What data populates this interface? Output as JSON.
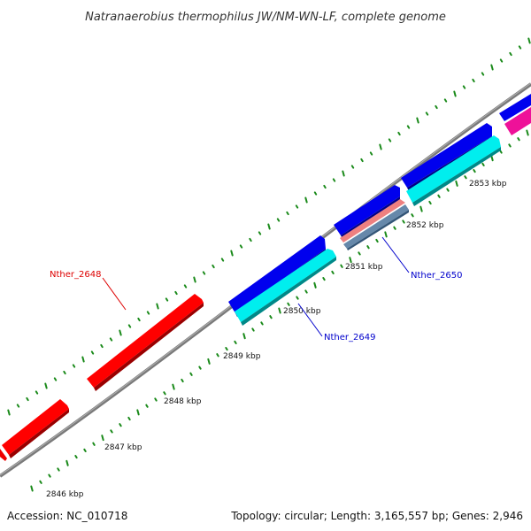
{
  "title": "Natranaerobius thermophilus JW/NM-WN-LF, complete genome",
  "footer": {
    "accession": "Accession: NC_010718",
    "summary": "Topology: circular; Length: 3,165,557 bp; Genes: 2,946"
  },
  "colors": {
    "backbone": "#808080",
    "tick": "#1a8a1a",
    "gene_red": "#ff0000",
    "gene_blue": "#0000ee",
    "gene_cyan": "#00eeee",
    "gene_pink": "#ee1199",
    "gene_salmon": "#e88080",
    "gene_steel": "#6688aa",
    "label_red": "#dd0000",
    "label_blue": "#0000cc"
  },
  "scale_labels": [
    {
      "text": "2846 kbp"
    },
    {
      "text": "2847 kbp"
    },
    {
      "text": "2848 kbp"
    },
    {
      "text": "2849 kbp"
    },
    {
      "text": "2850 kbp"
    },
    {
      "text": "2851 kbp"
    },
    {
      "text": "2852 kbp"
    },
    {
      "text": "2853 kbp"
    }
  ],
  "gene_labels": [
    {
      "text": "Nther_2648",
      "color": "#dd0000"
    },
    {
      "text": "Nther_2649",
      "color": "#0000cc"
    },
    {
      "text": "Nther_2650",
      "color": "#0000cc"
    }
  ]
}
